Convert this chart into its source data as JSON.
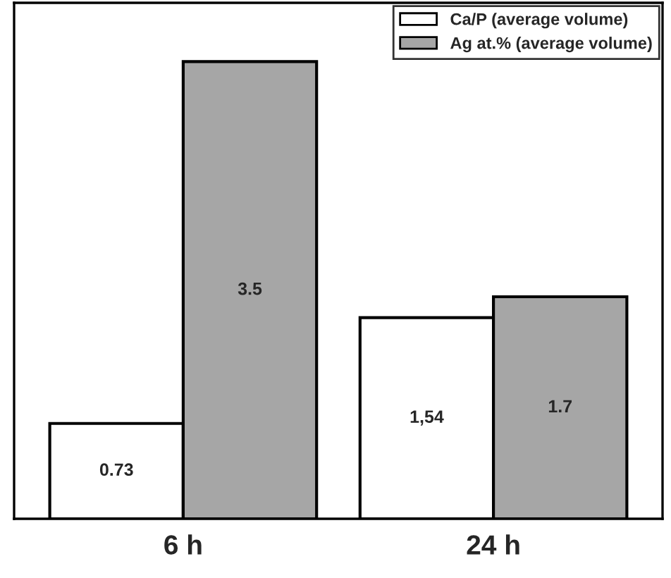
{
  "chart_data": {
    "type": "bar",
    "categories": [
      "6 h",
      "24 h"
    ],
    "series": [
      {
        "name": "Ca/P (average volume)",
        "color": "#ffffff",
        "values": [
          0.73,
          1.54
        ],
        "value_labels": [
          "0.73",
          "1,54"
        ]
      },
      {
        "name": "Ag at.% (average volume)",
        "color": "#a6a6a6",
        "values": [
          3.5,
          1.7
        ],
        "value_labels": [
          "3.5",
          "1.7"
        ]
      }
    ],
    "ylim": [
      0,
      3.95
    ],
    "legend": "top right",
    "tick_labels": "x",
    "grid": false
  }
}
